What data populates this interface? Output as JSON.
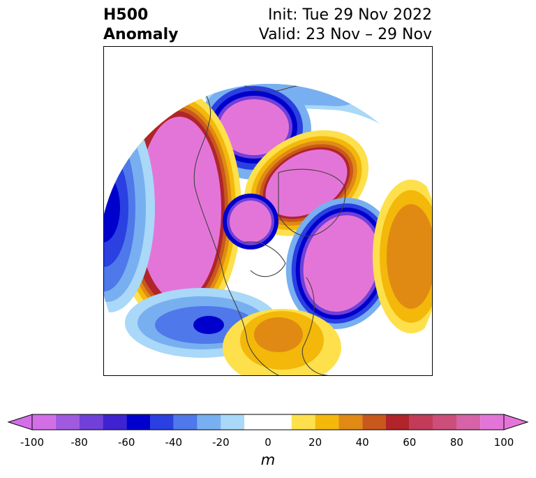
{
  "title": {
    "left_line1": "H500",
    "left_line2": "Anomaly",
    "right_line1": "Init: Tue 29 Nov 2022",
    "right_line2": "Valid: 23 Nov – 29 Nov"
  },
  "map": {
    "projection": "north-polar-stereographic",
    "variable": "500 hPa geopotential height anomaly",
    "features": [
      {
        "type": "negative",
        "region": "northern Siberia / Arctic Russia"
      },
      {
        "type": "negative",
        "region": "Hudson Bay / central Canada"
      },
      {
        "type": "negative",
        "region": "North Atlantic near Iceland"
      },
      {
        "type": "negative",
        "region": "central Pacific / Gulf of Alaska"
      },
      {
        "type": "negative",
        "region": "far western Pacific"
      },
      {
        "type": "positive",
        "region": "western Siberia / Eurasia"
      },
      {
        "type": "positive",
        "region": "Alaska / Bering Strait"
      },
      {
        "type": "positive",
        "region": "Greenland / Baffin Island"
      },
      {
        "type": "positive",
        "region": "southeastern United States"
      }
    ]
  },
  "colorbar": {
    "label": "m",
    "ticks": [
      "-100",
      "-80",
      "-60",
      "-40",
      "-20",
      "0",
      "20",
      "40",
      "60",
      "80",
      "100"
    ],
    "levels": [
      -100,
      -90,
      -80,
      -70,
      -60,
      -50,
      -40,
      -30,
      -20,
      -10,
      10,
      20,
      30,
      40,
      50,
      60,
      70,
      80,
      90,
      100
    ],
    "colors": [
      "#d36fe6",
      "#a05ae0",
      "#7040d8",
      "#3f22d0",
      "#0000cc",
      "#2a40e0",
      "#4f78ea",
      "#78aff0",
      "#a9d8f8",
      "#ffffff",
      "#fde04c",
      "#f3b80a",
      "#e08a14",
      "#c8581c",
      "#b0242a",
      "#c23c5a",
      "#cc4e7a",
      "#d662a8",
      "#e475d8"
    ],
    "extend_min_color": "#d36fe6",
    "extend_max_color": "#e475d8"
  }
}
